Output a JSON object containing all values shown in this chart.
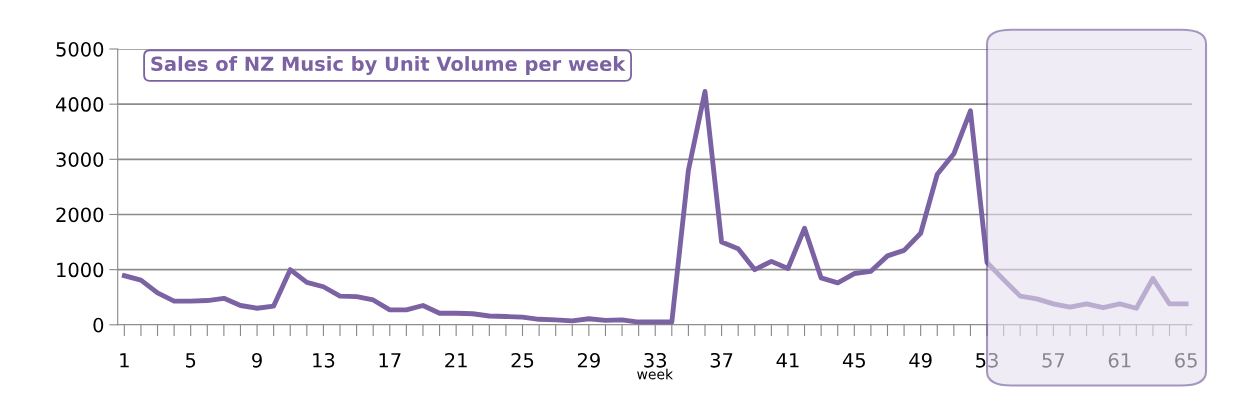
{
  "chart_data": {
    "type": "line",
    "title": "Sales of NZ Music by Unit Volume per week",
    "xlabel": "week",
    "categories": [
      "1",
      null,
      null,
      null,
      "5",
      null,
      null,
      null,
      "9",
      null,
      null,
      null,
      "13",
      null,
      null,
      null,
      "17",
      null,
      null,
      null,
      "21",
      null,
      null,
      null,
      "25",
      null,
      null,
      null,
      "29",
      null,
      null,
      null,
      "33",
      null,
      null,
      null,
      "37",
      null,
      null,
      null,
      "41",
      null,
      null,
      null,
      "45",
      null,
      null,
      null,
      "49",
      null,
      null,
      null,
      "53",
      null,
      null,
      null,
      "57",
      null,
      null,
      null,
      "61",
      null,
      null,
      null,
      "65"
    ],
    "series": [
      {
        "color": "#7b62a3",
        "values": [
          890,
          810,
          580,
          430,
          430,
          440,
          480,
          350,
          300,
          340,
          1000,
          770,
          690,
          520,
          510,
          450,
          270,
          270,
          350,
          210,
          210,
          200,
          160,
          150,
          140,
          100,
          90,
          70,
          110,
          80,
          90,
          50,
          50,
          50,
          2800,
          4230,
          1500,
          1380,
          1000,
          1150,
          1020,
          1750,
          850,
          760,
          930,
          970,
          1250,
          1350,
          1660,
          2730,
          3100,
          3880,
          1130,
          820,
          520,
          470,
          380,
          320,
          380,
          310,
          380,
          300,
          840,
          380,
          380
        ]
      }
    ],
    "ylim": [
      0,
      5000
    ],
    "yticks": [
      0,
      1000,
      2000,
      3000,
      4000,
      5000
    ],
    "grid": "y",
    "marker": "none",
    "line_style": "solid",
    "bands": [
      {
        "axis": "x",
        "from": "53",
        "to": "65",
        "color": "#e6e0ef"
      }
    ]
  }
}
